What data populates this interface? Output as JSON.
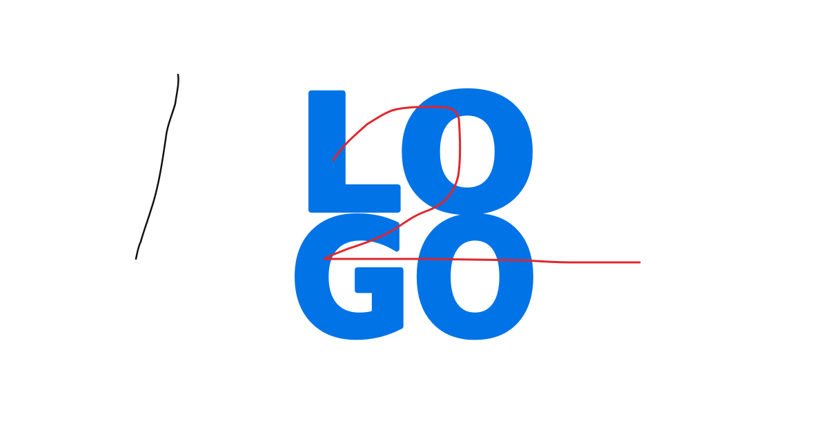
{
  "logo": {
    "lines": [
      "LO",
      "GO"
    ]
  }
}
